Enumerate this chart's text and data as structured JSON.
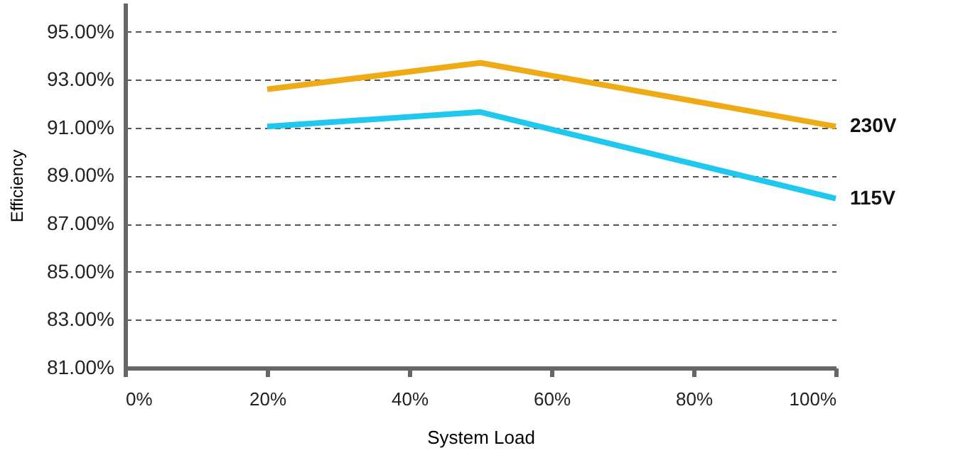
{
  "chart_data": {
    "type": "line",
    "xlabel": "System Load",
    "ylabel": "Efficiency",
    "xlim": [
      0,
      100
    ],
    "xticks": [
      {
        "value": 0,
        "label": "0%"
      },
      {
        "value": 20,
        "label": "20%"
      },
      {
        "value": 40,
        "label": "40%"
      },
      {
        "value": 60,
        "label": "60%"
      },
      {
        "value": 80,
        "label": "80%"
      },
      {
        "value": 100,
        "label": "100%"
      }
    ],
    "ylim": [
      81,
      96.2
    ],
    "yticks": [
      {
        "value": 81,
        "label": "81.00%"
      },
      {
        "value": 83,
        "label": "83.00%"
      },
      {
        "value": 85,
        "label": "85.00%"
      },
      {
        "value": 87,
        "label": "87.00%"
      },
      {
        "value": 89,
        "label": "89.00%"
      },
      {
        "value": 91,
        "label": "91.00%"
      },
      {
        "value": 93,
        "label": "93.00%"
      },
      {
        "value": 95,
        "label": "95.00%"
      }
    ],
    "grid": "y",
    "legend": false,
    "marker": "none",
    "line_style": "solid",
    "x": [
      20,
      50,
      100
    ],
    "series": [
      {
        "name": "230V",
        "color": "#efab16",
        "values": [
          92.6,
          93.7,
          91.05
        ]
      },
      {
        "name": "115V",
        "color": "#1ec8ee",
        "values": [
          91.05,
          91.65,
          88.05
        ]
      }
    ]
  }
}
